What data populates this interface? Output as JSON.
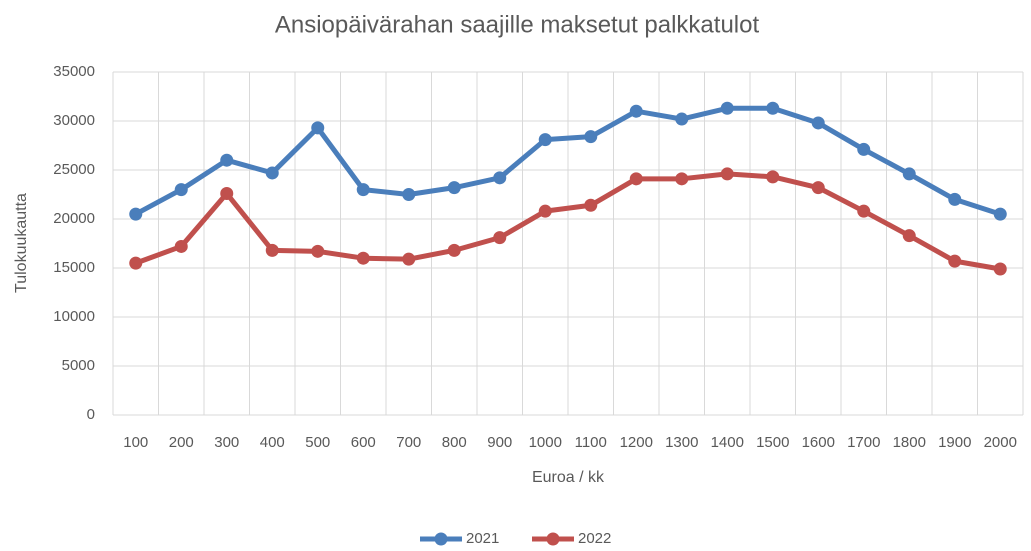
{
  "chart_data": {
    "type": "line",
    "title": "Ansiopäivärahan saajille maksetut palkkatulot",
    "x_label": "Euroa / kk",
    "y_label": "Tulokuukautta",
    "categories": [
      "100",
      "200",
      "300",
      "400",
      "500",
      "600",
      "700",
      "800",
      "900",
      "1000",
      "1100",
      "1200",
      "1300",
      "1400",
      "1500",
      "1600",
      "1700",
      "1800",
      "1900",
      "2000"
    ],
    "series": [
      {
        "name": "2021",
        "color": "#4a7ebb",
        "values": [
          20500,
          23000,
          26000,
          24700,
          29300,
          23000,
          22500,
          23200,
          24200,
          28100,
          28400,
          31000,
          30200,
          31300,
          31300,
          29800,
          27100,
          24600,
          22000,
          20500
        ]
      },
      {
        "name": "2022",
        "color": "#c0504d",
        "values": [
          15500,
          17200,
          22600,
          16800,
          16700,
          16000,
          15900,
          16800,
          18100,
          20800,
          21400,
          24100,
          24100,
          24600,
          24300,
          23200,
          20800,
          18300,
          15700,
          14900
        ]
      }
    ],
    "ylim": [
      0,
      35000
    ],
    "yticks": [
      0,
      5000,
      10000,
      15000,
      20000,
      25000,
      30000,
      35000
    ],
    "grid": true,
    "legend": "bottom"
  }
}
